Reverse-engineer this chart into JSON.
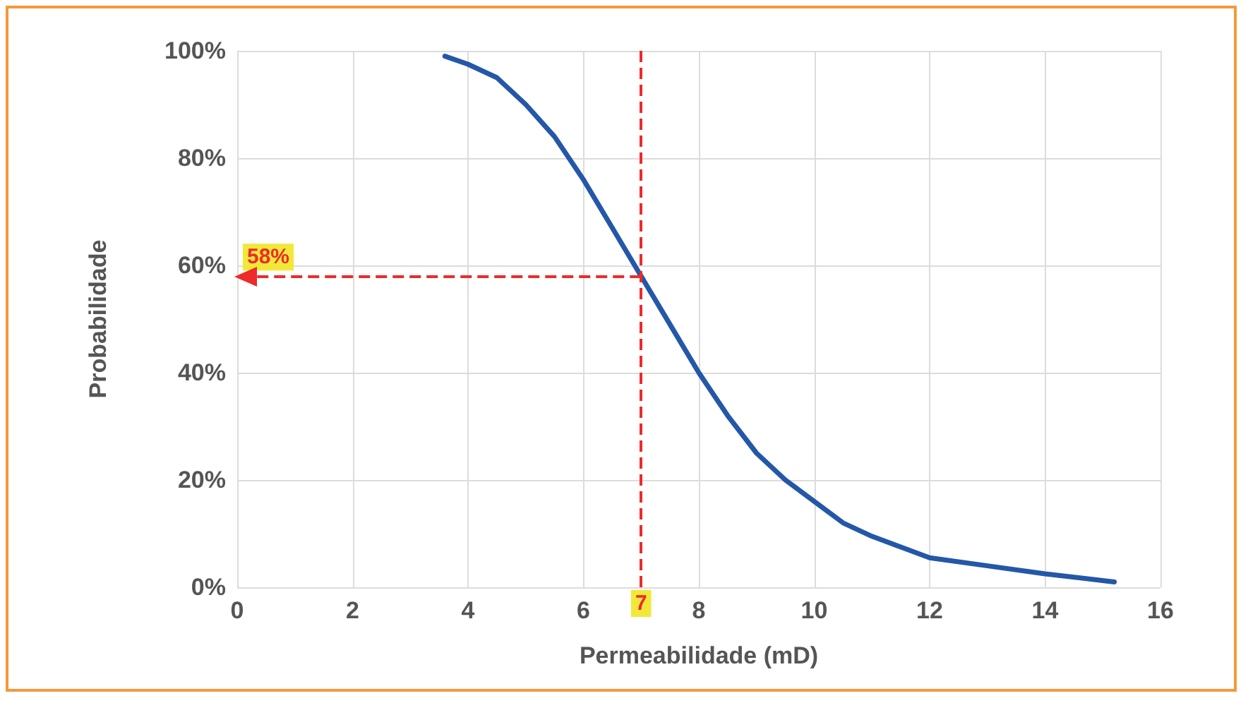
{
  "chart_data": {
    "type": "line",
    "xlabel": "Permeabilidade (mD)",
    "ylabel": "Probabilidade",
    "x": [
      3.6,
      4.0,
      4.5,
      5,
      5.5,
      6,
      6.5,
      7,
      7.5,
      8,
      8.5,
      9,
      9.5,
      10,
      10.5,
      11,
      11.5,
      12,
      13,
      14,
      15.2
    ],
    "series": [
      {
        "color": "#2457a8",
        "values": [
          99,
          97.5,
          95,
          90,
          84,
          76,
          67,
          58,
          49,
          40,
          32,
          25,
          20,
          16,
          12,
          9.5,
          7.5,
          5.5,
          4,
          2.5,
          1
        ]
      }
    ],
    "xlim": [
      0,
      16
    ],
    "xticks": [
      0,
      2,
      4,
      6,
      8,
      10,
      12,
      14,
      16
    ],
    "ylim": [
      0,
      100
    ],
    "yticks": [
      {
        "value": 0,
        "label": "0%"
      },
      {
        "value": 20,
        "label": "20%"
      },
      {
        "value": 40,
        "label": "40%"
      },
      {
        "value": 60,
        "label": "60%"
      },
      {
        "value": 80,
        "label": "80%"
      },
      {
        "value": 100,
        "label": "100%"
      }
    ],
    "grid": true,
    "marker": "none",
    "line_style": "solid",
    "ref_lines": [
      {
        "axis": "x",
        "value": 7,
        "label": "7",
        "color": "#ee2a2a",
        "line_style": "dashed"
      },
      {
        "axis": "y",
        "value": 58,
        "label": "58%",
        "color": "#ee2a2a",
        "line_style": "dashed"
      }
    ]
  }
}
